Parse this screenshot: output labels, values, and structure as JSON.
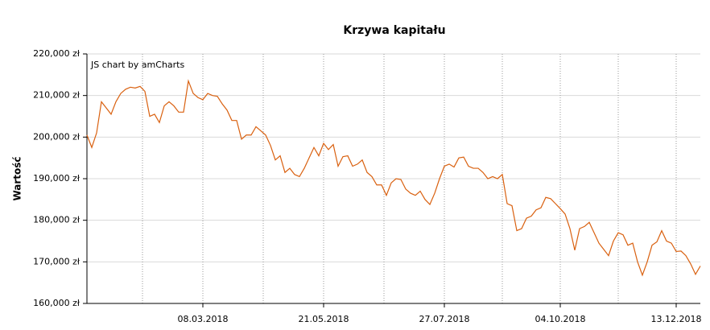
{
  "chart_data": {
    "type": "line",
    "title": "Krzywa kapitału",
    "credit": "JS chart by amCharts",
    "y_label": "Wartość",
    "categories": [
      null,
      null,
      null,
      null,
      null,
      null,
      null,
      null,
      null,
      null,
      null,
      null,
      null,
      null,
      null,
      null,
      null,
      null,
      null,
      null,
      null,
      null,
      null,
      null,
      "08.03.2018",
      null,
      null,
      null,
      null,
      null,
      null,
      null,
      null,
      null,
      null,
      null,
      null,
      null,
      null,
      null,
      null,
      null,
      null,
      null,
      null,
      null,
      null,
      null,
      null,
      "21.05.2018",
      null,
      null,
      null,
      null,
      null,
      null,
      null,
      null,
      null,
      null,
      null,
      null,
      null,
      null,
      null,
      null,
      null,
      null,
      null,
      null,
      null,
      null,
      null,
      null,
      "27.07.2018",
      null,
      null,
      null,
      null,
      null,
      null,
      null,
      null,
      null,
      null,
      null,
      null,
      null,
      null,
      null,
      null,
      null,
      null,
      null,
      null,
      null,
      null,
      null,
      "04.10.2018",
      null,
      null,
      null,
      null,
      null,
      null,
      null,
      null,
      null,
      null,
      null,
      null,
      null,
      null,
      null,
      null,
      null,
      null,
      null,
      null,
      null,
      null,
      null,
      "13.12.2018",
      null,
      null,
      null,
      null,
      null
    ],
    "series": [
      {
        "name": "Wartość",
        "color": "#d9600f",
        "values": [
          200500,
          197500,
          201000,
          208500,
          207000,
          205500,
          208500,
          210500,
          211500,
          212000,
          211800,
          212200,
          211000,
          205000,
          205500,
          203500,
          207500,
          208500,
          207500,
          206000,
          206000,
          213500,
          210500,
          209500,
          209000,
          210500,
          210000,
          209800,
          208000,
          206500,
          204000,
          204000,
          199500,
          200500,
          200500,
          202500,
          201500,
          200500,
          198000,
          194500,
          195500,
          191500,
          192500,
          191000,
          190500,
          192500,
          195000,
          197500,
          195500,
          198500,
          197000,
          198200,
          193000,
          195300,
          195500,
          193000,
          193500,
          194500,
          191500,
          190500,
          188500,
          188500,
          186000,
          189000,
          190000,
          189800,
          187500,
          186500,
          186000,
          187000,
          185000,
          183800,
          186500,
          190000,
          193000,
          193500,
          192800,
          195000,
          195200,
          193000,
          192500,
          192500,
          191500,
          190000,
          190500,
          190000,
          191000,
          184000,
          183500,
          177500,
          178000,
          180500,
          181000,
          182500,
          183000,
          185500,
          185200,
          184000,
          182800,
          181500,
          178000,
          172800,
          178000,
          178500,
          179500,
          177000,
          174500,
          173000,
          171500,
          175000,
          177000,
          176500,
          174000,
          174500,
          170000,
          166800,
          170000,
          174000,
          174800,
          177500,
          175000,
          174500,
          172500,
          172600,
          171500,
          169500,
          167000,
          169000
        ]
      }
    ],
    "ylim": [
      160000,
      220000
    ],
    "yticks": [
      {
        "value": 160000,
        "label": "160,000 zł"
      },
      {
        "value": 170000,
        "label": "170,000 zł"
      },
      {
        "value": 180000,
        "label": "180,000 zł"
      },
      {
        "value": 190000,
        "label": "190,000 zł"
      },
      {
        "value": 200000,
        "label": "200,000 zł"
      },
      {
        "value": 210000,
        "label": "210,000 zł"
      },
      {
        "value": 220000,
        "label": "220,000 zł"
      }
    ],
    "grid": true
  }
}
